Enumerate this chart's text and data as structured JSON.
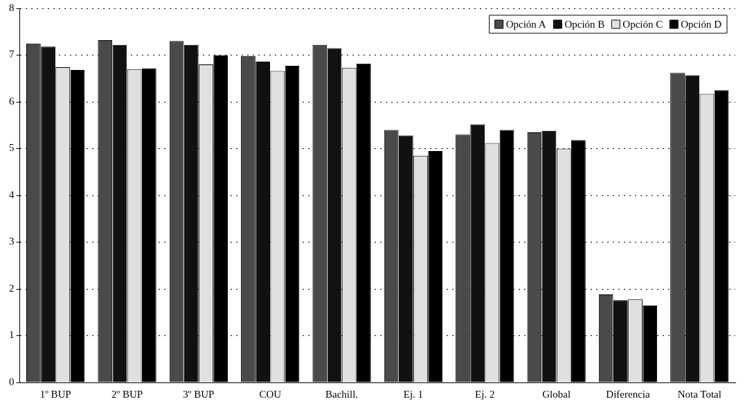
{
  "chart_data": {
    "type": "bar",
    "categories": [
      "1º BUP",
      "2º BUP",
      "3º BUP",
      "COU",
      "Bachill.",
      "Ej. 1",
      "Ej. 2",
      "Global",
      "Diferencia",
      "Nota Total"
    ],
    "series": [
      {
        "name": "Opción A",
        "color": "#4a4a4a",
        "values": [
          7.25,
          7.32,
          7.3,
          6.98,
          7.22,
          5.4,
          5.3,
          5.35,
          1.88,
          6.62
        ]
      },
      {
        "name": "Opción B",
        "color": "#111111",
        "values": [
          7.18,
          7.22,
          7.22,
          6.86,
          7.15,
          5.28,
          5.52,
          5.38,
          1.76,
          6.57
        ]
      },
      {
        "name": "Opción C",
        "color": "#e0e0e0",
        "values": [
          6.74,
          6.7,
          6.8,
          6.66,
          6.73,
          4.85,
          5.12,
          5.0,
          1.78,
          6.17
        ]
      },
      {
        "name": "Opción D",
        "color": "#000000",
        "values": [
          6.68,
          6.72,
          7.0,
          6.77,
          6.82,
          4.95,
          5.4,
          5.18,
          1.65,
          6.25
        ]
      }
    ],
    "ylim": [
      0,
      8
    ],
    "yticks": [
      0,
      1,
      2,
      3,
      4,
      5,
      6,
      7,
      8
    ],
    "grid": "y",
    "legend": "top right"
  }
}
